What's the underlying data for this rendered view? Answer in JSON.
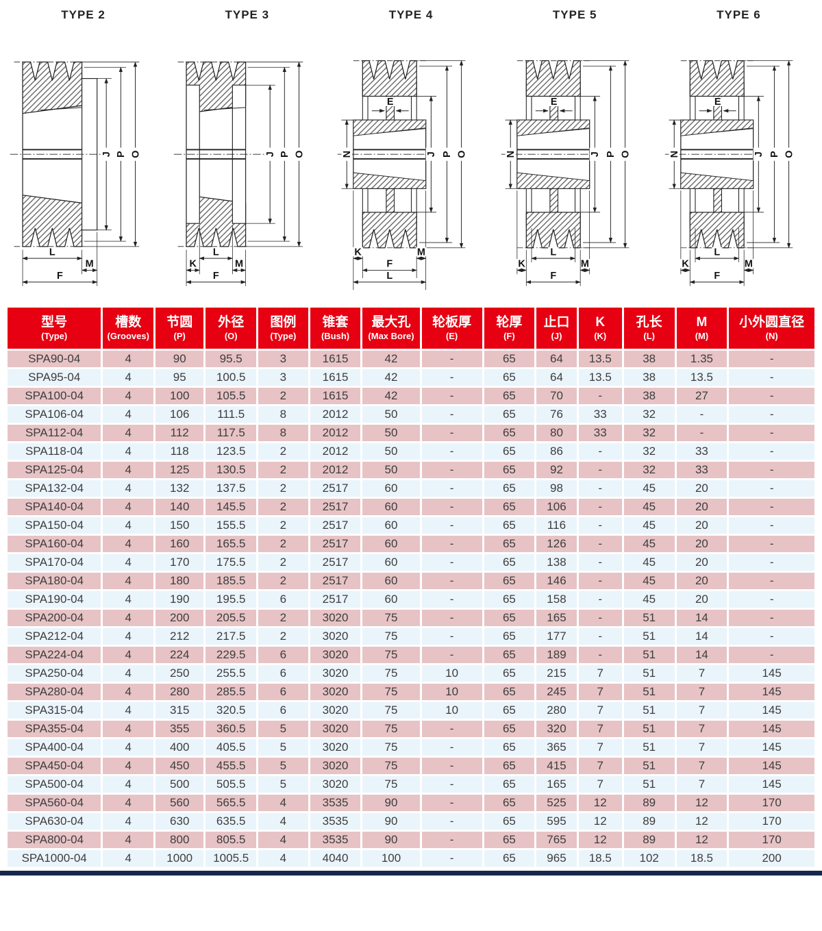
{
  "colors": {
    "header_red": "#e60012",
    "row_pink": "#e7c3c5",
    "row_blue": "#eaf4fb",
    "footer_navy": "#16294d",
    "line_color": "#222222"
  },
  "diagrams": [
    {
      "title": "TYPE 2",
      "shape": "flange",
      "variant": 2,
      "labels": {
        "J": "J",
        "P": "P",
        "O": "O",
        "L": "L",
        "M": "M",
        "F": "F"
      }
    },
    {
      "title": "TYPE 3",
      "shape": "flange",
      "variant": 3,
      "labels": {
        "J": "J",
        "P": "P",
        "O": "O",
        "K": "K",
        "L": "L",
        "M": "M",
        "F": "F"
      }
    },
    {
      "title": "TYPE 4",
      "shape": "hub",
      "variant": 4,
      "labels": {
        "E": "E",
        "N": "N",
        "J": "J",
        "P": "P",
        "O": "O",
        "K": "K",
        "L": "L",
        "M": "M",
        "F": "F"
      }
    },
    {
      "title": "TYPE 5",
      "shape": "hub",
      "variant": 5,
      "labels": {
        "E": "E",
        "N": "N",
        "J": "J",
        "P": "P",
        "O": "O",
        "K": "K",
        "L": "L",
        "M": "M",
        "F": "F"
      }
    },
    {
      "title": "TYPE 6",
      "shape": "hub",
      "variant": 6,
      "labels": {
        "E": "E",
        "N": "N",
        "J": "J",
        "P": "P",
        "O": "O",
        "K": "K",
        "L": "L",
        "M": "M",
        "F": "F"
      }
    }
  ],
  "table": {
    "headers": [
      {
        "zh": "型号",
        "en": "(Type)"
      },
      {
        "zh": "槽数",
        "en": "(Grooves)"
      },
      {
        "zh": "节圆",
        "en": "(P)"
      },
      {
        "zh": "外径",
        "en": "(O)"
      },
      {
        "zh": "图例",
        "en": "(Type)"
      },
      {
        "zh": "锥套",
        "en": "(Bush)"
      },
      {
        "zh": "最大孔",
        "en": "(Max Bore)"
      },
      {
        "zh": "轮板厚",
        "en": "(E)"
      },
      {
        "zh": "轮厚",
        "en": "(F)"
      },
      {
        "zh": "止口",
        "en": "(J)"
      },
      {
        "zh": "K",
        "en": "(K)"
      },
      {
        "zh": "孔长",
        "en": "(L)"
      },
      {
        "zh": "M",
        "en": "(M)"
      },
      {
        "zh": "小外圆直径",
        "en": "(N)"
      }
    ],
    "rows": [
      [
        "SPA90-04",
        "4",
        "90",
        "95.5",
        "3",
        "1615",
        "42",
        "-",
        "65",
        "64",
        "13.5",
        "38",
        "1.35",
        "-"
      ],
      [
        "SPA95-04",
        "4",
        "95",
        "100.5",
        "3",
        "1615",
        "42",
        "-",
        "65",
        "64",
        "13.5",
        "38",
        "13.5",
        "-"
      ],
      [
        "SPA100-04",
        "4",
        "100",
        "105.5",
        "2",
        "1615",
        "42",
        "-",
        "65",
        "70",
        "-",
        "38",
        "27",
        "-"
      ],
      [
        "SPA106-04",
        "4",
        "106",
        "111.5",
        "8",
        "2012",
        "50",
        "-",
        "65",
        "76",
        "33",
        "32",
        "-",
        "-"
      ],
      [
        "SPA112-04",
        "4",
        "112",
        "117.5",
        "8",
        "2012",
        "50",
        "-",
        "65",
        "80",
        "33",
        "32",
        "-",
        "-"
      ],
      [
        "SPA118-04",
        "4",
        "118",
        "123.5",
        "2",
        "2012",
        "50",
        "-",
        "65",
        "86",
        "-",
        "32",
        "33",
        "-"
      ],
      [
        "SPA125-04",
        "4",
        "125",
        "130.5",
        "2",
        "2012",
        "50",
        "-",
        "65",
        "92",
        "-",
        "32",
        "33",
        "-"
      ],
      [
        "SPA132-04",
        "4",
        "132",
        "137.5",
        "2",
        "2517",
        "60",
        "-",
        "65",
        "98",
        "-",
        "45",
        "20",
        "-"
      ],
      [
        "SPA140-04",
        "4",
        "140",
        "145.5",
        "2",
        "2517",
        "60",
        "-",
        "65",
        "106",
        "-",
        "45",
        "20",
        "-"
      ],
      [
        "SPA150-04",
        "4",
        "150",
        "155.5",
        "2",
        "2517",
        "60",
        "-",
        "65",
        "116",
        "-",
        "45",
        "20",
        "-"
      ],
      [
        "SPA160-04",
        "4",
        "160",
        "165.5",
        "2",
        "2517",
        "60",
        "-",
        "65",
        "126",
        "-",
        "45",
        "20",
        "-"
      ],
      [
        "SPA170-04",
        "4",
        "170",
        "175.5",
        "2",
        "2517",
        "60",
        "-",
        "65",
        "138",
        "-",
        "45",
        "20",
        "-"
      ],
      [
        "SPA180-04",
        "4",
        "180",
        "185.5",
        "2",
        "2517",
        "60",
        "-",
        "65",
        "146",
        "-",
        "45",
        "20",
        "-"
      ],
      [
        "SPA190-04",
        "4",
        "190",
        "195.5",
        "6",
        "2517",
        "60",
        "-",
        "65",
        "158",
        "-",
        "45",
        "20",
        "-"
      ],
      [
        "SPA200-04",
        "4",
        "200",
        "205.5",
        "2",
        "3020",
        "75",
        "-",
        "65",
        "165",
        "-",
        "51",
        "14",
        "-"
      ],
      [
        "SPA212-04",
        "4",
        "212",
        "217.5",
        "2",
        "3020",
        "75",
        "-",
        "65",
        "177",
        "-",
        "51",
        "14",
        "-"
      ],
      [
        "SPA224-04",
        "4",
        "224",
        "229.5",
        "6",
        "3020",
        "75",
        "-",
        "65",
        "189",
        "-",
        "51",
        "14",
        "-"
      ],
      [
        "SPA250-04",
        "4",
        "250",
        "255.5",
        "6",
        "3020",
        "75",
        "10",
        "65",
        "215",
        "7",
        "51",
        "7",
        "145"
      ],
      [
        "SPA280-04",
        "4",
        "280",
        "285.5",
        "6",
        "3020",
        "75",
        "10",
        "65",
        "245",
        "7",
        "51",
        "7",
        "145"
      ],
      [
        "SPA315-04",
        "4",
        "315",
        "320.5",
        "6",
        "3020",
        "75",
        "10",
        "65",
        "280",
        "7",
        "51",
        "7",
        "145"
      ],
      [
        "SPA355-04",
        "4",
        "355",
        "360.5",
        "5",
        "3020",
        "75",
        "-",
        "65",
        "320",
        "7",
        "51",
        "7",
        "145"
      ],
      [
        "SPA400-04",
        "4",
        "400",
        "405.5",
        "5",
        "3020",
        "75",
        "-",
        "65",
        "365",
        "7",
        "51",
        "7",
        "145"
      ],
      [
        "SPA450-04",
        "4",
        "450",
        "455.5",
        "5",
        "3020",
        "75",
        "-",
        "65",
        "415",
        "7",
        "51",
        "7",
        "145"
      ],
      [
        "SPA500-04",
        "4",
        "500",
        "505.5",
        "5",
        "3020",
        "75",
        "-",
        "65",
        "165",
        "7",
        "51",
        "7",
        "145"
      ],
      [
        "SPA560-04",
        "4",
        "560",
        "565.5",
        "4",
        "3535",
        "90",
        "-",
        "65",
        "525",
        "12",
        "89",
        "12",
        "170"
      ],
      [
        "SPA630-04",
        "4",
        "630",
        "635.5",
        "4",
        "3535",
        "90",
        "-",
        "65",
        "595",
        "12",
        "89",
        "12",
        "170"
      ],
      [
        "SPA800-04",
        "4",
        "800",
        "805.5",
        "4",
        "3535",
        "90",
        "-",
        "65",
        "765",
        "12",
        "89",
        "12",
        "170"
      ],
      [
        "SPA1000-04",
        "4",
        "1000",
        "1005.5",
        "4",
        "4040",
        "100",
        "-",
        "65",
        "965",
        "18.5",
        "102",
        "18.5",
        "200"
      ]
    ]
  }
}
